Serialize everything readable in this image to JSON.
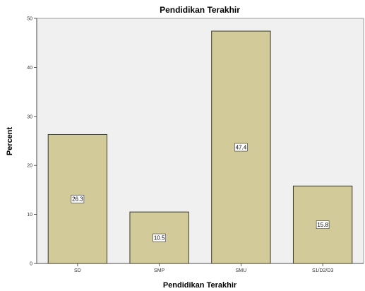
{
  "chart_data": {
    "type": "bar",
    "title": "Pendidikan Terakhir",
    "xlabel": "Pendidikan Terakhir",
    "ylabel": "Percent",
    "categories": [
      "SD",
      "SMP",
      "SMU",
      "S1/D2/D3"
    ],
    "values": [
      26.3,
      10.5,
      47.4,
      15.8
    ],
    "data_labels": [
      "26.3",
      "10.5",
      "47.4",
      "15.8"
    ],
    "ylim": [
      0,
      50
    ],
    "yticks": [
      0,
      10,
      20,
      30,
      40,
      50
    ],
    "grid": false,
    "legend": "none",
    "colors": {
      "bar_fill": "#d3ca9a",
      "bar_stroke": "#3a3a2a",
      "plot_bg": "#f0f0f0",
      "label_box": "#ffffff"
    }
  }
}
